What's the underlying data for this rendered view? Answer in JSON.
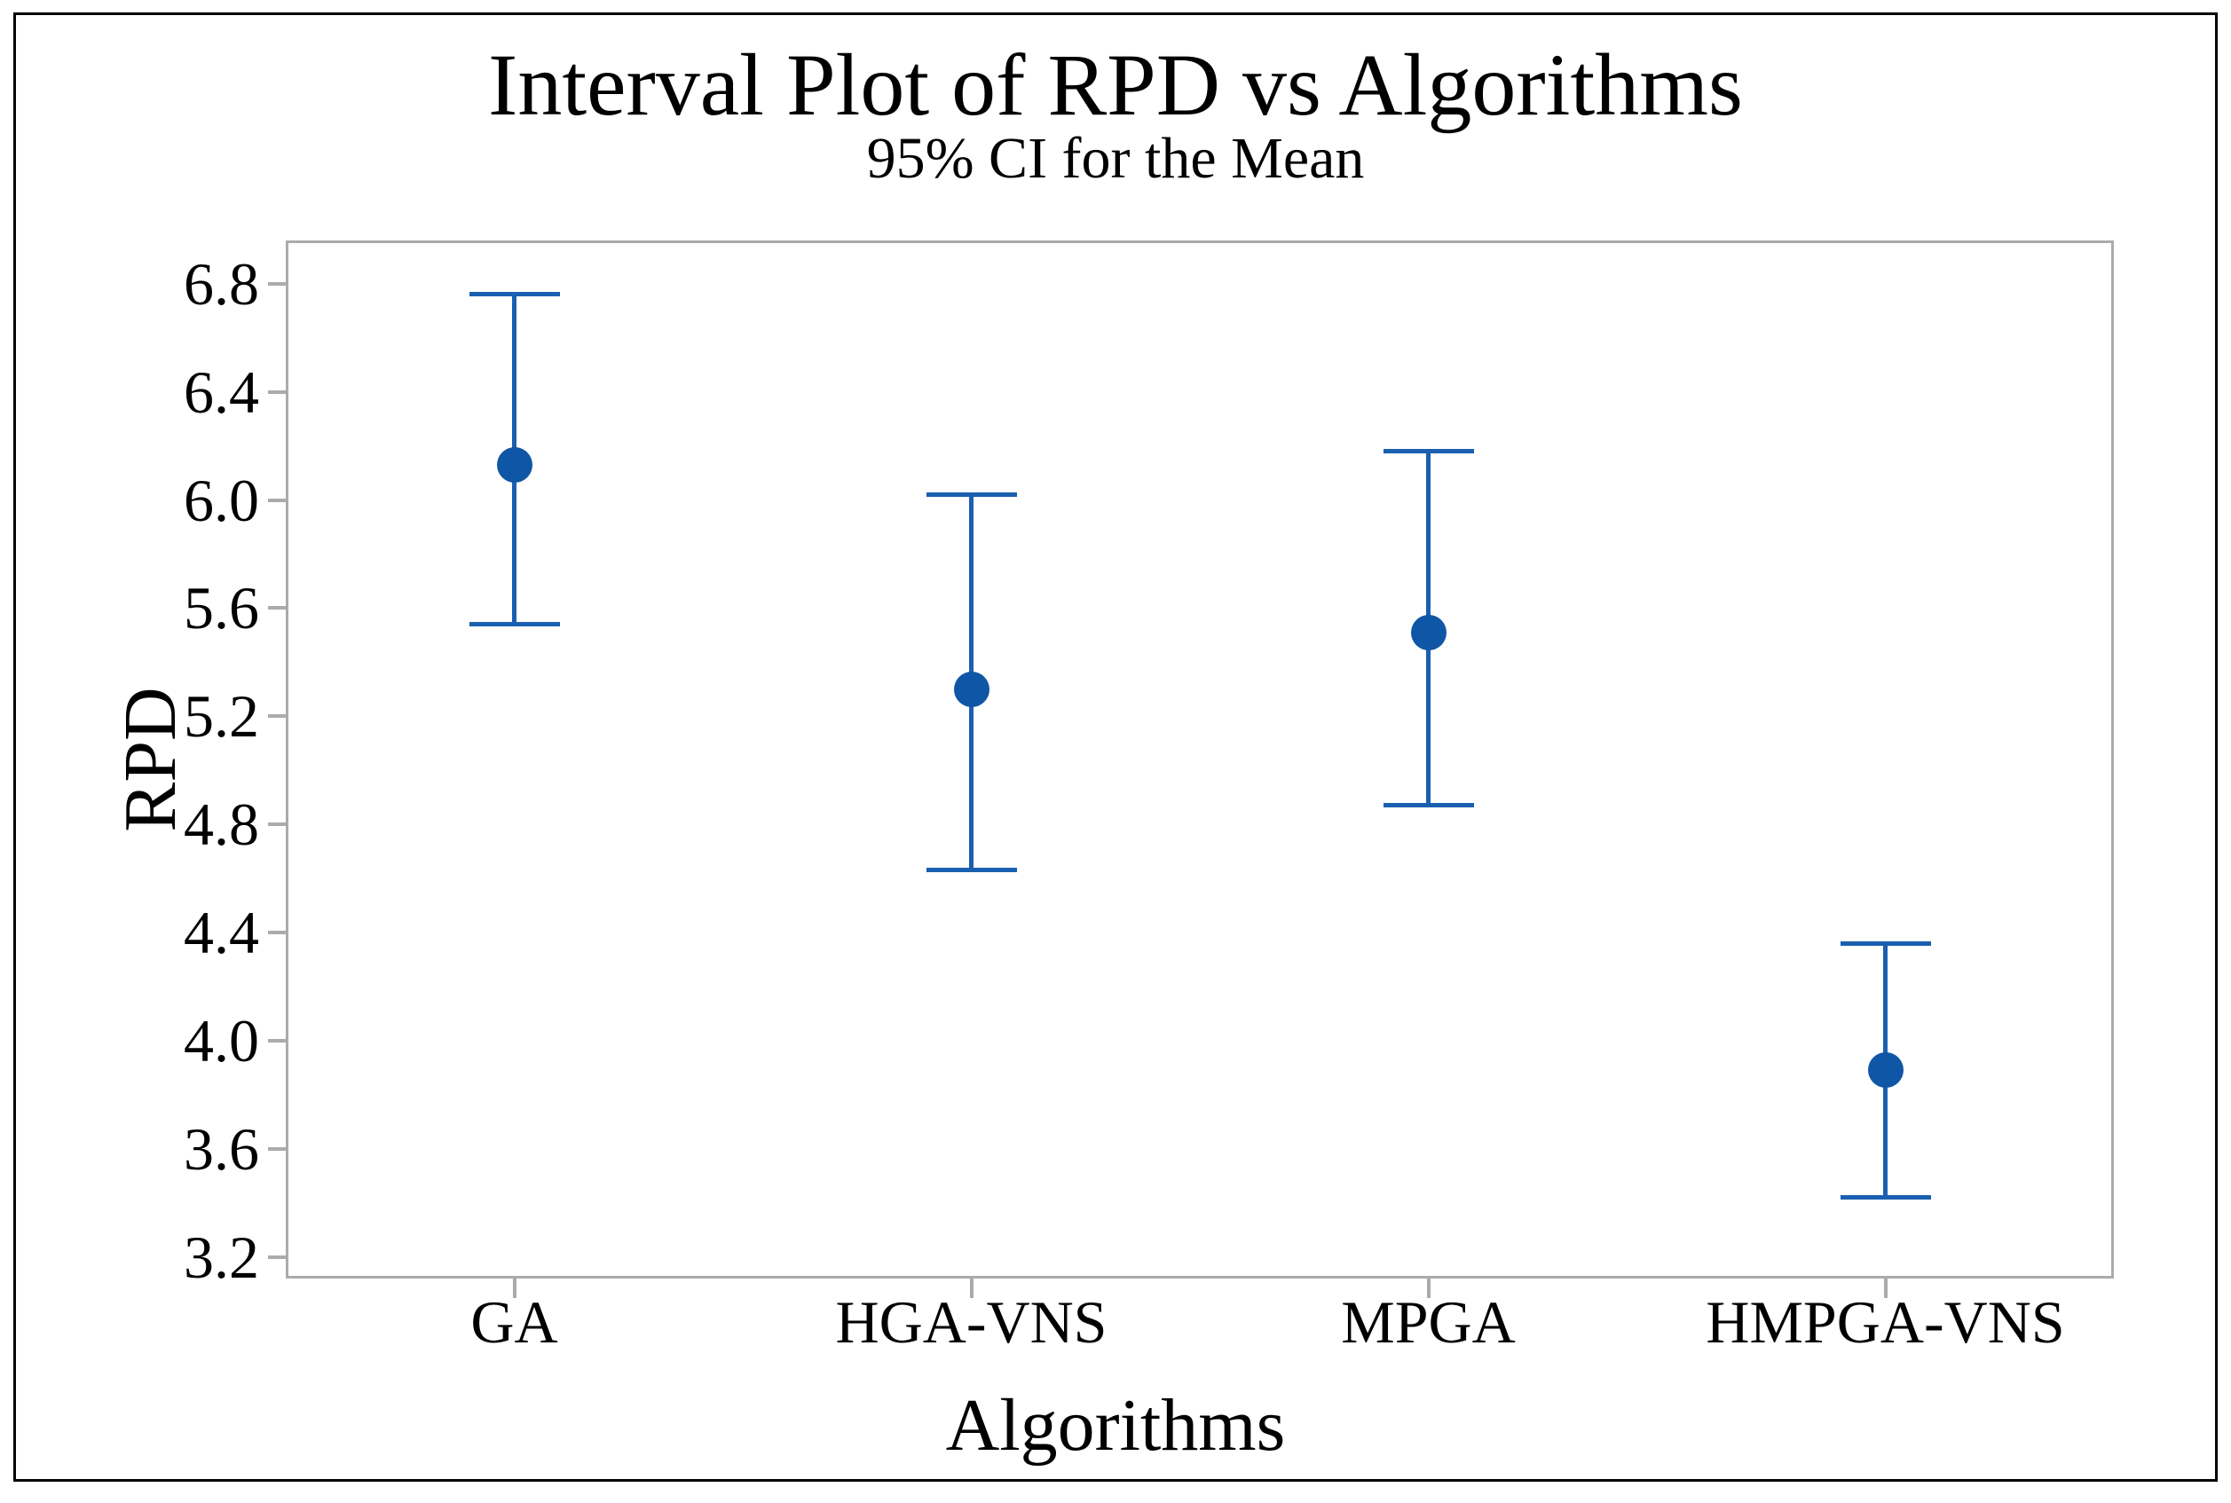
{
  "chart_data": {
    "type": "interval",
    "title": "Interval Plot of RPD vs Algorithms",
    "subtitle": "95% CI for the Mean",
    "xlabel": "Algorithms",
    "ylabel": "RPD",
    "categories": [
      "GA",
      "HGA-VNS",
      "MPGA",
      "HMPGA-VNS"
    ],
    "series": [
      {
        "name": "Mean",
        "values": [
          6.13,
          5.3,
          5.51,
          3.89
        ]
      },
      {
        "name": "95% CI lower",
        "values": [
          5.54,
          4.63,
          4.87,
          3.42
        ]
      },
      {
        "name": "95% CI upper",
        "values": [
          6.76,
          6.02,
          6.18,
          4.36
        ]
      }
    ],
    "yticks": [
      "6.8",
      "6.4",
      "6.0",
      "5.6",
      "5.2",
      "4.8",
      "4.4",
      "4.0",
      "3.6",
      "3.2"
    ],
    "ylim": [
      3.12,
      6.96
    ],
    "grid": false,
    "legend": false,
    "colors": {
      "marker": "#1056A6",
      "interval_line": "#1A5FB0",
      "axis": "#ABABAB",
      "text": "#000000",
      "frame": "#000000"
    }
  }
}
